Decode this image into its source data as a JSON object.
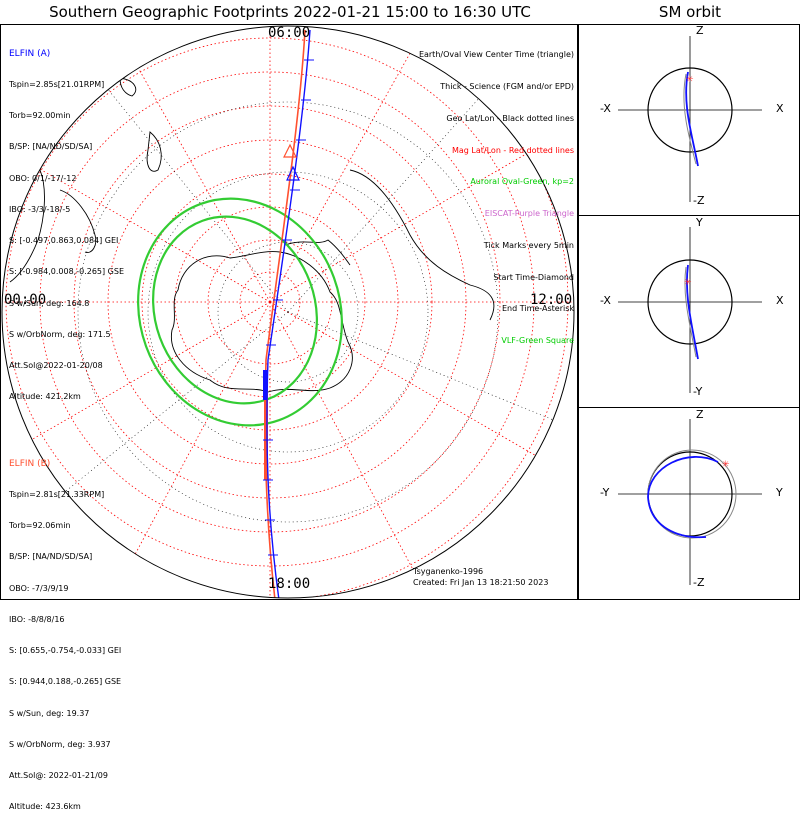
{
  "title": "Southern Geographic Footprints 2022-01-21 15:00 to 16:30 UTC",
  "sm_title": "SM orbit",
  "clock_labels": {
    "top": "06:00",
    "left": "00:00",
    "right": "12:00",
    "bottom": "18:00"
  },
  "elfin_a": {
    "name": "ELFIN (A)",
    "lines": [
      "Tspin=2.85s[21.01RPM]",
      "Torb=92.00min",
      "B/SP: [NA/ND/SD/SA]",
      "OBO: 0/1/-17/-12",
      "IBO: -3/3/-18/-5",
      "S: [-0.497,0.863,0.084] GEI",
      "S: [-0.984,0.008,-0.265] GSE",
      "S w/Sun, deg: 164.8",
      "S w/OrbNorm, deg: 171.5",
      "Att.Sol@2022-01-20/08",
      "Altitude: 421.2km"
    ]
  },
  "elfin_b": {
    "name": "ELFIN (B)",
    "lines": [
      "Tspin=2.81s[21.33RPM]",
      "Torb=92.06min",
      "B/SP: [NA/ND/SD/SA]",
      "OBO: -7/3/9/19",
      "IBO: -8/8/8/16",
      "S: [0.655,-0.754,-0.033] GEI",
      "S: [0.944,0.188,-0.265] GSE",
      "S w/Sun, deg: 19.37",
      "S w/OrbNorm, deg: 3.937",
      "Att.Sol@: 2022-01-21/09",
      "Altitude: 423.6km"
    ]
  },
  "legend": [
    {
      "text": "Earth/Oval View Center Time (triangle)",
      "color": "#000000"
    },
    {
      "text": "Thick - Science (FGM and/or EPD)",
      "color": "#000000"
    },
    {
      "text": "Geo Lat/Lon - Black dotted lines",
      "color": "#000000"
    },
    {
      "text": "Mag Lat/Lon - Red dotted lines",
      "color": "#ff0000"
    },
    {
      "text": "Auroral Oval-Green, kp=2",
      "color": "#00cc00"
    },
    {
      "text": "EISCAT-Purple Triangle",
      "color": "#cc66cc"
    },
    {
      "text": "Tick Marks every 5min",
      "color": "#000000"
    },
    {
      "text": "Start Time-Diamond",
      "color": "#000000"
    },
    {
      "text": "End Time-Asterisk",
      "color": "#000000"
    },
    {
      "text": "VLF-Green Square",
      "color": "#00cc00"
    }
  ],
  "credit": [
    "Tsyganenko-1996",
    "Created: Fri Jan 13 18:21:50 2023"
  ],
  "sm_panels": [
    {
      "top": "Z",
      "bottom": "-Z",
      "left": "-X",
      "right": "X"
    },
    {
      "top": "Y",
      "bottom": "-Y",
      "left": "-X",
      "right": "X"
    },
    {
      "top": "Z",
      "bottom": "-Z",
      "left": "-Y",
      "right": "Y"
    }
  ],
  "colors": {
    "elfin_a": "#0000ff",
    "elfin_b": "#ff5030",
    "oval": "#33cc33",
    "mag_grid": "#ff0000",
    "geo_grid": "#000000"
  }
}
